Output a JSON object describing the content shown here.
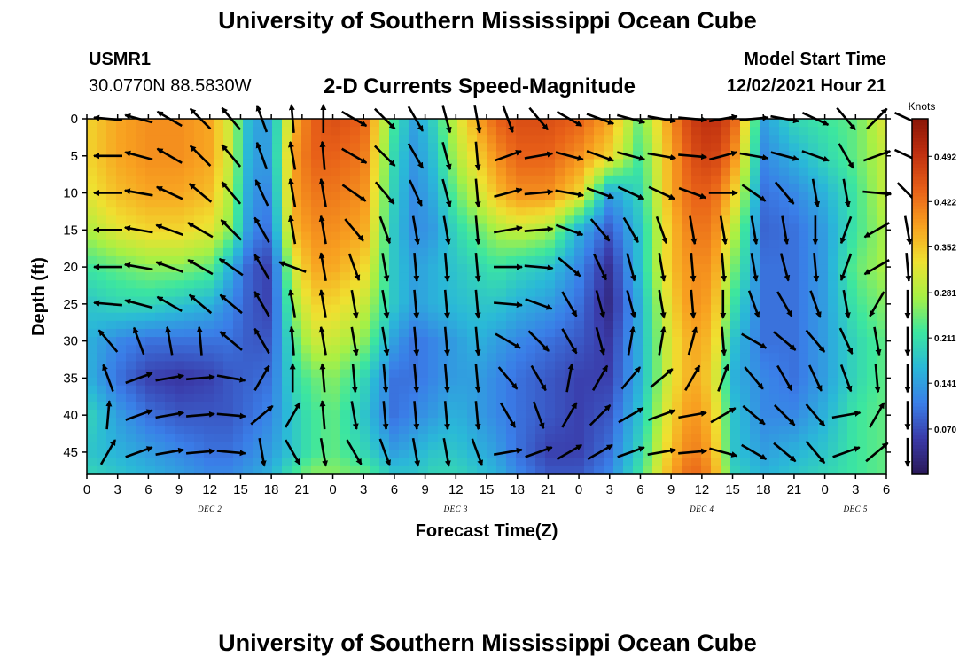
{
  "header": {
    "title": "University of Southern Mississippi Ocean Cube",
    "station_id": "USMR1",
    "coords": "30.0770N  88.5830W",
    "product": "2-D Currents Speed-Magnitude",
    "model_label": "Model Start Time",
    "model_time": "12/02/2021 Hour 21"
  },
  "footer": {
    "title": "University of Southern Mississippi Ocean Cube"
  },
  "colors": {
    "background": "#ffffff",
    "axis": "#000000"
  },
  "chart_data": {
    "type": "heatmap",
    "xlabel": "Forecast Time(Z)",
    "ylabel": "Depth (ft)",
    "x_unit": "forecast hour",
    "x_ticks": [
      0,
      3,
      6,
      9,
      12,
      15,
      18,
      21,
      24,
      27,
      30,
      33,
      36,
      39,
      42,
      45,
      48,
      51,
      54,
      57,
      60,
      63,
      66,
      69,
      72,
      75,
      78
    ],
    "x_tick_labels": [
      "0",
      "3",
      "6",
      "9",
      "12",
      "15",
      "18",
      "21",
      "0",
      "3",
      "6",
      "9",
      "12",
      "15",
      "18",
      "21",
      "0",
      "3",
      "6",
      "9",
      "12",
      "15",
      "18",
      "21",
      "0",
      "3",
      "6"
    ],
    "day_labels": [
      {
        "x": 12,
        "text": "DEC 2"
      },
      {
        "x": 36,
        "text": "DEC 3"
      },
      {
        "x": 60,
        "text": "DEC 4"
      },
      {
        "x": 75,
        "text": "DEC 5"
      }
    ],
    "xlim": [
      0,
      78
    ],
    "ylim": [
      0,
      48
    ],
    "y_inverted": true,
    "y_ticks": [
      0,
      5,
      10,
      15,
      20,
      25,
      30,
      35,
      40,
      45
    ],
    "colorbar": {
      "label": "Knots",
      "range": [
        0.0,
        0.55
      ],
      "ticks": [
        "0.070",
        "0.141",
        "0.211",
        "0.281",
        "0.352",
        "0.422",
        "0.492"
      ],
      "tick_values": [
        0.07,
        0.141,
        0.211,
        0.281,
        0.352,
        0.422,
        0.492
      ],
      "colormap": [
        "#2a1858",
        "#3a3aa8",
        "#3a7ee8",
        "#2ab8d8",
        "#3ce6a0",
        "#a8f044",
        "#f0e030",
        "#f8a020",
        "#e86018",
        "#c03010",
        "#8a1608"
      ]
    },
    "speed_field": {
      "description_axes": "rows = depth (ft), cols = forecast hour",
      "x": [
        0,
        3,
        6,
        9,
        12,
        14,
        16,
        18,
        20,
        22,
        24,
        27,
        30,
        32,
        34,
        36,
        38,
        40,
        42,
        45,
        48,
        51,
        54,
        57,
        59,
        61,
        63,
        66,
        69,
        72,
        75,
        78
      ],
      "y": [
        0,
        5,
        10,
        15,
        20,
        25,
        30,
        35,
        40,
        45,
        48
      ],
      "values": [
        [
          0.34,
          0.38,
          0.4,
          0.4,
          0.38,
          0.3,
          0.15,
          0.14,
          0.36,
          0.44,
          0.46,
          0.44,
          0.22,
          0.14,
          0.2,
          0.3,
          0.38,
          0.44,
          0.46,
          0.46,
          0.44,
          0.38,
          0.24,
          0.4,
          0.48,
          0.5,
          0.46,
          0.14,
          0.2,
          0.22,
          0.24,
          0.32
        ],
        [
          0.34,
          0.38,
          0.4,
          0.4,
          0.38,
          0.3,
          0.14,
          0.14,
          0.38,
          0.44,
          0.44,
          0.42,
          0.2,
          0.13,
          0.18,
          0.28,
          0.34,
          0.4,
          0.44,
          0.44,
          0.4,
          0.34,
          0.22,
          0.38,
          0.46,
          0.48,
          0.42,
          0.12,
          0.16,
          0.2,
          0.24,
          0.3
        ],
        [
          0.32,
          0.36,
          0.38,
          0.38,
          0.36,
          0.28,
          0.13,
          0.12,
          0.38,
          0.42,
          0.42,
          0.4,
          0.19,
          0.12,
          0.16,
          0.24,
          0.3,
          0.36,
          0.4,
          0.4,
          0.34,
          0.14,
          0.2,
          0.38,
          0.44,
          0.44,
          0.36,
          0.1,
          0.12,
          0.16,
          0.22,
          0.3
        ],
        [
          0.28,
          0.32,
          0.34,
          0.34,
          0.32,
          0.26,
          0.12,
          0.1,
          0.36,
          0.4,
          0.4,
          0.38,
          0.18,
          0.12,
          0.14,
          0.2,
          0.24,
          0.28,
          0.3,
          0.28,
          0.16,
          0.08,
          0.18,
          0.36,
          0.42,
          0.42,
          0.3,
          0.09,
          0.1,
          0.14,
          0.22,
          0.28
        ],
        [
          0.22,
          0.24,
          0.26,
          0.26,
          0.24,
          0.16,
          0.08,
          0.06,
          0.3,
          0.38,
          0.38,
          0.34,
          0.18,
          0.14,
          0.16,
          0.18,
          0.2,
          0.22,
          0.2,
          0.18,
          0.12,
          0.04,
          0.18,
          0.36,
          0.4,
          0.4,
          0.26,
          0.1,
          0.1,
          0.14,
          0.24,
          0.28
        ],
        [
          0.18,
          0.2,
          0.2,
          0.18,
          0.16,
          0.12,
          0.08,
          0.06,
          0.26,
          0.34,
          0.34,
          0.3,
          0.18,
          0.14,
          0.16,
          0.17,
          0.18,
          0.18,
          0.16,
          0.14,
          0.1,
          0.03,
          0.16,
          0.34,
          0.4,
          0.38,
          0.22,
          0.1,
          0.1,
          0.14,
          0.22,
          0.26
        ],
        [
          0.16,
          0.12,
          0.1,
          0.1,
          0.1,
          0.1,
          0.08,
          0.08,
          0.22,
          0.3,
          0.3,
          0.26,
          0.14,
          0.1,
          0.12,
          0.14,
          0.16,
          0.14,
          0.12,
          0.1,
          0.08,
          0.05,
          0.16,
          0.32,
          0.38,
          0.36,
          0.18,
          0.1,
          0.1,
          0.14,
          0.2,
          0.24
        ],
        [
          0.16,
          0.1,
          0.06,
          0.05,
          0.06,
          0.08,
          0.09,
          0.1,
          0.2,
          0.24,
          0.26,
          0.2,
          0.1,
          0.1,
          0.12,
          0.14,
          0.14,
          0.12,
          0.1,
          0.08,
          0.06,
          0.06,
          0.16,
          0.32,
          0.38,
          0.34,
          0.16,
          0.12,
          0.1,
          0.14,
          0.2,
          0.24
        ],
        [
          0.2,
          0.14,
          0.1,
          0.08,
          0.08,
          0.08,
          0.1,
          0.12,
          0.18,
          0.22,
          0.24,
          0.18,
          0.1,
          0.12,
          0.14,
          0.16,
          0.14,
          0.12,
          0.1,
          0.08,
          0.06,
          0.08,
          0.18,
          0.34,
          0.4,
          0.36,
          0.18,
          0.12,
          0.12,
          0.16,
          0.22,
          0.24
        ],
        [
          0.18,
          0.16,
          0.14,
          0.12,
          0.1,
          0.1,
          0.12,
          0.14,
          0.18,
          0.22,
          0.24,
          0.2,
          0.14,
          0.16,
          0.18,
          0.18,
          0.16,
          0.14,
          0.1,
          0.06,
          0.06,
          0.1,
          0.2,
          0.36,
          0.42,
          0.38,
          0.18,
          0.14,
          0.16,
          0.18,
          0.22,
          0.24
        ],
        [
          0.2,
          0.18,
          0.16,
          0.14,
          0.12,
          0.12,
          0.14,
          0.16,
          0.22,
          0.26,
          0.26,
          0.24,
          0.18,
          0.18,
          0.2,
          0.2,
          0.18,
          0.16,
          0.12,
          0.08,
          0.08,
          0.12,
          0.22,
          0.38,
          0.44,
          0.4,
          0.2,
          0.16,
          0.18,
          0.2,
          0.22,
          0.24
        ]
      ]
    },
    "current_vectors": {
      "description_axes": "direction in degrees (0 = pointing right/east, 90 = up/north); speed in knots",
      "x": [
        0,
        3,
        6,
        9,
        12,
        15,
        18,
        21,
        24,
        27,
        30,
        33,
        36,
        39,
        42,
        45,
        48,
        51,
        54,
        57,
        60,
        63,
        66,
        69,
        72,
        75,
        78
      ],
      "y": [
        0,
        5,
        10,
        15,
        20,
        25,
        30,
        35,
        40,
        45
      ],
      "direction_deg": [
        [
          175,
          165,
          150,
          135,
          130,
          110,
          95,
          90,
          -30,
          -45,
          -60,
          -75,
          -80,
          -70,
          -50,
          -30,
          -20,
          -15,
          -10,
          -5,
          10,
          5,
          -10,
          -25,
          -50,
          45,
          -25
        ],
        [
          180,
          165,
          150,
          135,
          130,
          110,
          100,
          95,
          -30,
          -45,
          -60,
          -75,
          -85,
          20,
          10,
          -15,
          -20,
          -15,
          -10,
          -5,
          15,
          -10,
          -15,
          -20,
          -60,
          20,
          -25
        ],
        [
          180,
          170,
          155,
          140,
          130,
          115,
          100,
          100,
          -35,
          -50,
          -65,
          -75,
          -85,
          15,
          5,
          -10,
          -20,
          -25,
          -25,
          -20,
          0,
          -35,
          -50,
          -80,
          -80,
          -5,
          -45
        ],
        [
          180,
          170,
          160,
          150,
          135,
          120,
          100,
          100,
          -50,
          -70,
          -80,
          -80,
          -85,
          10,
          5,
          -20,
          -50,
          -60,
          -70,
          -80,
          -80,
          -80,
          -80,
          -90,
          -110,
          -150,
          -80
        ],
        [
          180,
          170,
          160,
          150,
          145,
          120,
          160,
          100,
          -70,
          -80,
          -85,
          -85,
          -85,
          0,
          -5,
          -40,
          -65,
          -75,
          -80,
          -85,
          -85,
          -80,
          -75,
          -85,
          -110,
          -150,
          -85
        ],
        [
          175,
          165,
          150,
          140,
          140,
          120,
          100,
          100,
          -80,
          -80,
          -85,
          -85,
          -85,
          -5,
          -20,
          -60,
          -75,
          -75,
          -80,
          -85,
          -90,
          -70,
          -60,
          -70,
          -80,
          -120,
          -90
        ],
        [
          130,
          110,
          100,
          95,
          140,
          120,
          95,
          100,
          -80,
          -80,
          -85,
          -85,
          -85,
          -30,
          -45,
          -60,
          -75,
          80,
          80,
          75,
          -85,
          -30,
          -40,
          -50,
          -65,
          -80,
          -90
        ],
        [
          110,
          20,
          10,
          5,
          -10,
          60,
          90,
          95,
          -85,
          -85,
          -85,
          -85,
          -85,
          -50,
          -60,
          80,
          60,
          50,
          40,
          60,
          70,
          -50,
          -60,
          -65,
          -70,
          -85,
          -90
        ],
        [
          85,
          20,
          10,
          5,
          -5,
          40,
          60,
          95,
          -80,
          -85,
          -85,
          -85,
          -85,
          -60,
          -70,
          60,
          45,
          30,
          20,
          10,
          30,
          -40,
          -45,
          -50,
          10,
          60,
          -90
        ],
        [
          60,
          20,
          10,
          5,
          -5,
          -80,
          -60,
          -80,
          -60,
          -70,
          -80,
          -80,
          -70,
          10,
          20,
          30,
          30,
          20,
          10,
          5,
          -15,
          -30,
          -40,
          -50,
          20,
          40,
          -90
        ]
      ]
    }
  }
}
